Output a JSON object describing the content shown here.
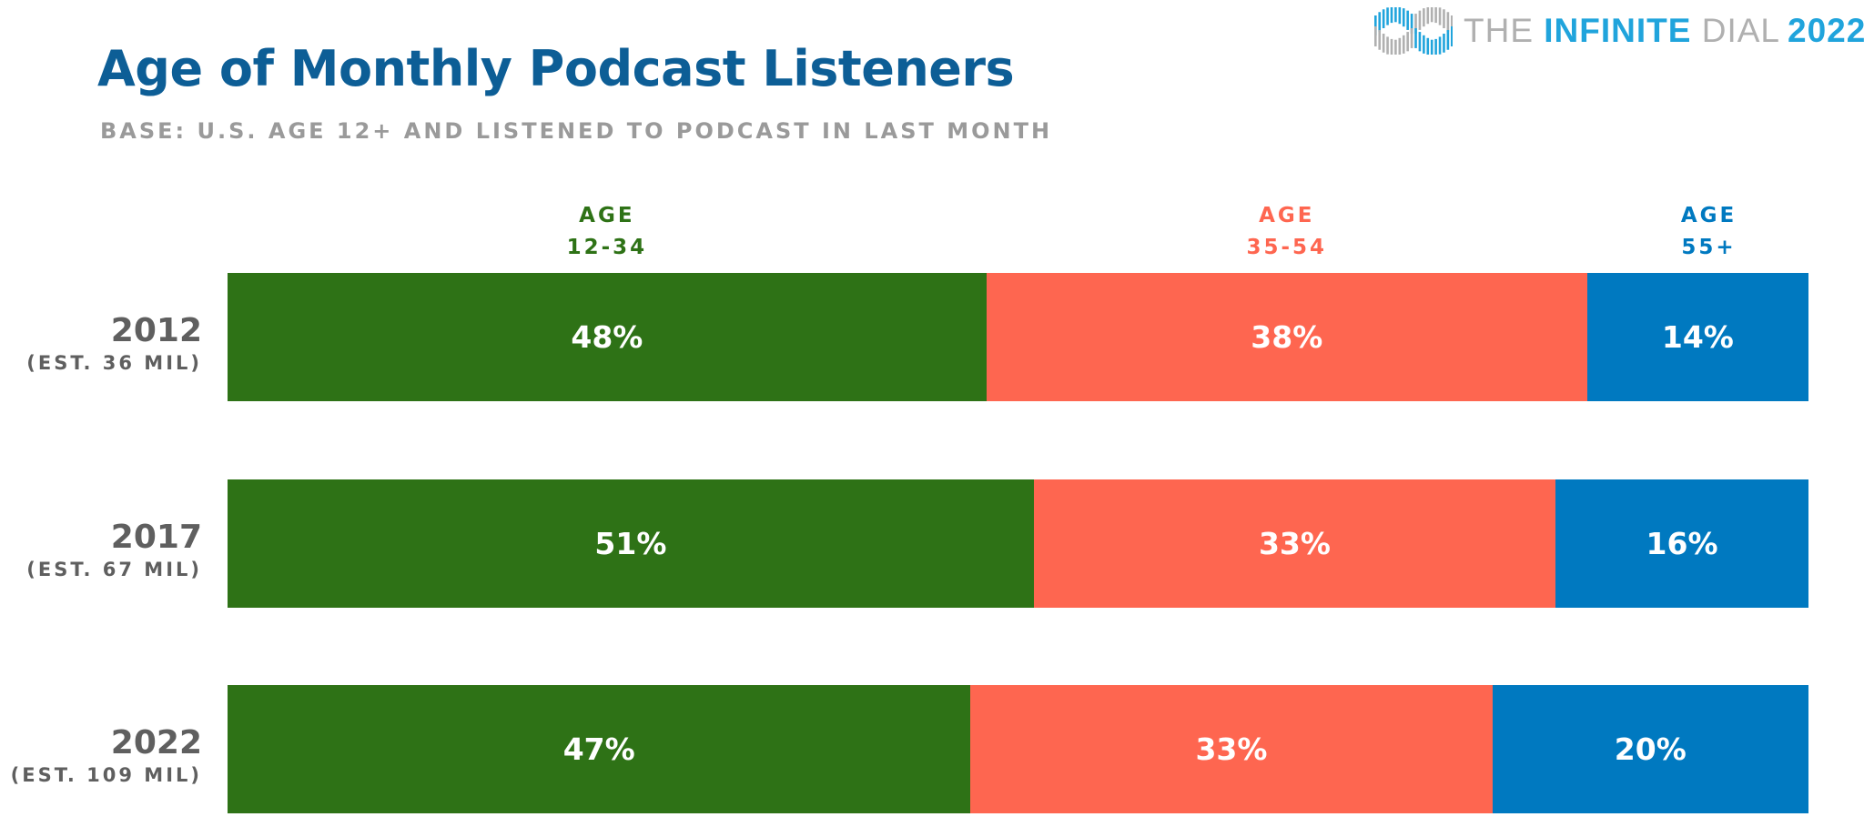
{
  "header": {
    "title": "Age of Monthly Podcast Listeners",
    "subtitle": "BASE: U.S. AGE 12+ AND LISTENED TO PODCAST IN LAST MONTH"
  },
  "logo": {
    "icon": "infinity-icon",
    "the": "THE ",
    "infinite": "INFINITE",
    "dial": " DIAL",
    "year": "2022"
  },
  "chart_data": {
    "type": "bar",
    "orientation": "horizontal",
    "stacked": true,
    "normalized_to": 100,
    "title": "Age of Monthly Podcast Listeners",
    "subtitle": "BASE: U.S. AGE 12+ AND LISTENED TO PODCAST IN LAST MONTH",
    "xlabel": "",
    "ylabel": "",
    "xlim": [
      0,
      100
    ],
    "grid": false,
    "legend_placement": "top",
    "categories": [
      "2012",
      "2017",
      "2022"
    ],
    "category_notes": [
      "(EST. 36 MIL)",
      "(EST. 67 MIL)",
      "(EST. 109 MIL)"
    ],
    "series": [
      {
        "name": "AGE 12-34",
        "header_line1": "AGE",
        "header_line2": "12-34",
        "color": "#2e7216",
        "values": [
          48,
          51,
          47
        ],
        "labels": [
          "48%",
          "51%",
          "47%"
        ]
      },
      {
        "name": "AGE 35-54",
        "header_line1": "AGE",
        "header_line2": "35-54",
        "color": "#fe6650",
        "values": [
          38,
          33,
          33
        ],
        "labels": [
          "38%",
          "33%",
          "33%"
        ]
      },
      {
        "name": "AGE 55+",
        "header_line1": "AGE",
        "header_line2": "55+",
        "color": "#0079c0",
        "values": [
          14,
          16,
          20
        ],
        "labels": [
          "14%",
          "16%",
          "20%"
        ]
      }
    ]
  },
  "colors": {
    "title": "#0d5e96",
    "subtitle": "#9a9a9a",
    "row_label": "#5f5f5f",
    "logo_blue": "#20a4dc",
    "logo_gray": "#b0b0b0"
  }
}
